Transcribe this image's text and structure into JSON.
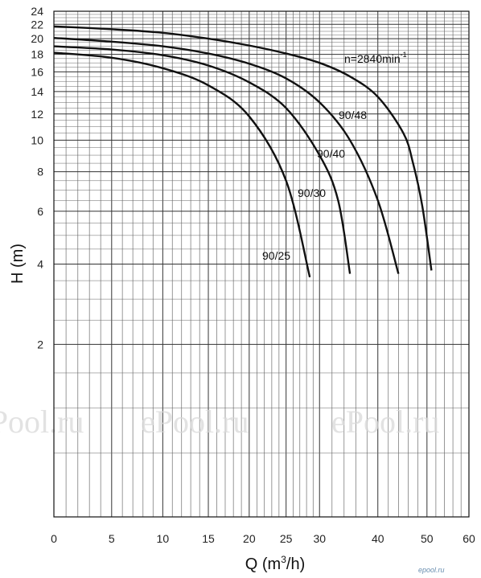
{
  "chart_data": {
    "type": "line",
    "title": "",
    "xlabel": "Q (m",
    "xlabel_sup": "3",
    "xlabel_tail": "/h)",
    "ylabel": "H (m)",
    "speed_label": "n=2840min",
    "speed_label_sup": "-1",
    "x_ticks": [
      "0",
      "5",
      "10",
      "15",
      "20",
      "25",
      "30",
      "40",
      "50",
      "60"
    ],
    "x_tick_values": [
      0,
      5,
      10,
      15,
      20,
      25,
      30,
      40,
      50,
      60
    ],
    "y_ticks": [
      "2",
      "4",
      "6",
      "8",
      "10",
      "12",
      "14",
      "16",
      "18",
      "20",
      "22",
      "24"
    ],
    "y_tick_values": [
      2,
      4,
      6,
      8,
      10,
      12,
      14,
      16,
      18,
      20,
      22,
      24
    ],
    "xlim": [
      0,
      60
    ],
    "ylim": [
      0,
      24
    ],
    "x_scale": "reciprocal",
    "y_scale": "log",
    "grid": true,
    "series": [
      {
        "name": "90/48",
        "x": [
          0,
          5,
          10,
          15,
          20,
          25,
          30,
          35,
          40,
          45,
          47,
          49,
          51
        ],
        "y": [
          21.7,
          21.3,
          20.8,
          20.0,
          19.1,
          18.1,
          17.0,
          15.5,
          13.5,
          10.5,
          8.5,
          6.2,
          3.8
        ]
      },
      {
        "name": "90/40",
        "x": [
          0,
          5,
          10,
          15,
          20,
          25,
          30,
          35,
          40,
          44
        ],
        "y": [
          20.1,
          19.6,
          19.0,
          18.1,
          16.9,
          15.3,
          13.0,
          10.0,
          6.5,
          3.7
        ]
      },
      {
        "name": "90/30",
        "x": [
          0,
          5,
          10,
          15,
          20,
          25,
          30,
          33,
          35
        ],
        "y": [
          19.0,
          18.6,
          17.9,
          16.7,
          14.9,
          12.5,
          9.0,
          6.5,
          3.7
        ]
      },
      {
        "name": "90/25",
        "x": [
          0,
          5,
          10,
          15,
          20,
          25,
          28.5
        ],
        "y": [
          18.2,
          17.6,
          16.4,
          14.6,
          11.8,
          7.5,
          3.6
        ]
      }
    ]
  },
  "watermarks": [
    "ePool.ru",
    "ePool.ru",
    "ePool.ru"
  ],
  "brand": "epool.ru"
}
